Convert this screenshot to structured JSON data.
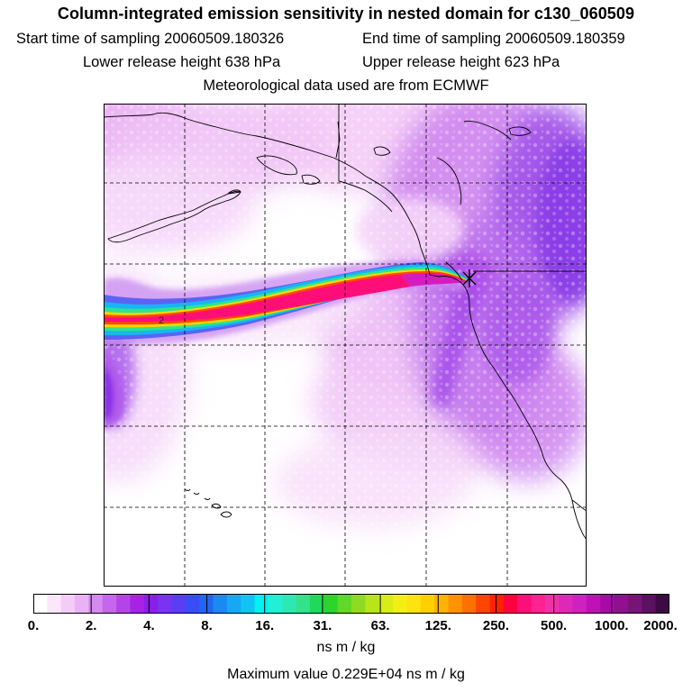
{
  "header": {
    "title": "Column-integrated emission sensitivity in nested domain for c130_060509",
    "start_label": "Start time of sampling 20060509.180326",
    "end_label": "End time of sampling 20060509.180359",
    "lower_label": "Lower release height  638 hPa",
    "upper_label": "Upper release height  623 hPa",
    "met_label": "Meteorological data used are from ECMWF"
  },
  "map": {
    "contour_label": "2",
    "release_marker": "x"
  },
  "colorbar": {
    "tick_labels": [
      "0.",
      "2.",
      "4.",
      "8.",
      "16.",
      "31.",
      "63.",
      "125.",
      "250.",
      "500.",
      "1000.",
      "2000."
    ],
    "colors": [
      "#ffffff",
      "#fbe6fb",
      "#f4ccf7",
      "#eab2f4",
      "#d48af0",
      "#c466ee",
      "#b444ea",
      "#a822e6",
      "#8a1fe6",
      "#7a33f2",
      "#5a3ef5",
      "#3a4cf8",
      "#2066f5",
      "#1a8af3",
      "#16a8f5",
      "#12c4f4",
      "#00f2f2",
      "#22f0d6",
      "#2ce8b4",
      "#34e28a",
      "#20d95c",
      "#2bd52b",
      "#5fd827",
      "#8edc22",
      "#b8e41a",
      "#d8ec16",
      "#f4ef12",
      "#ffe212",
      "#ffd000",
      "#ffb200",
      "#ff9200",
      "#ff7000",
      "#ff4500",
      "#ff2200",
      "#ff0040",
      "#ff0f78",
      "#ff2290",
      "#f030a8",
      "#e028b8",
      "#d020c0",
      "#c010b8",
      "#a80aa8",
      "#901090",
      "#781478",
      "#5c1060",
      "#3e0a45"
    ]
  },
  "footer": {
    "units": "ns m / kg",
    "max_value": "Maximum value  0.229E+04 ns m / kg"
  }
}
